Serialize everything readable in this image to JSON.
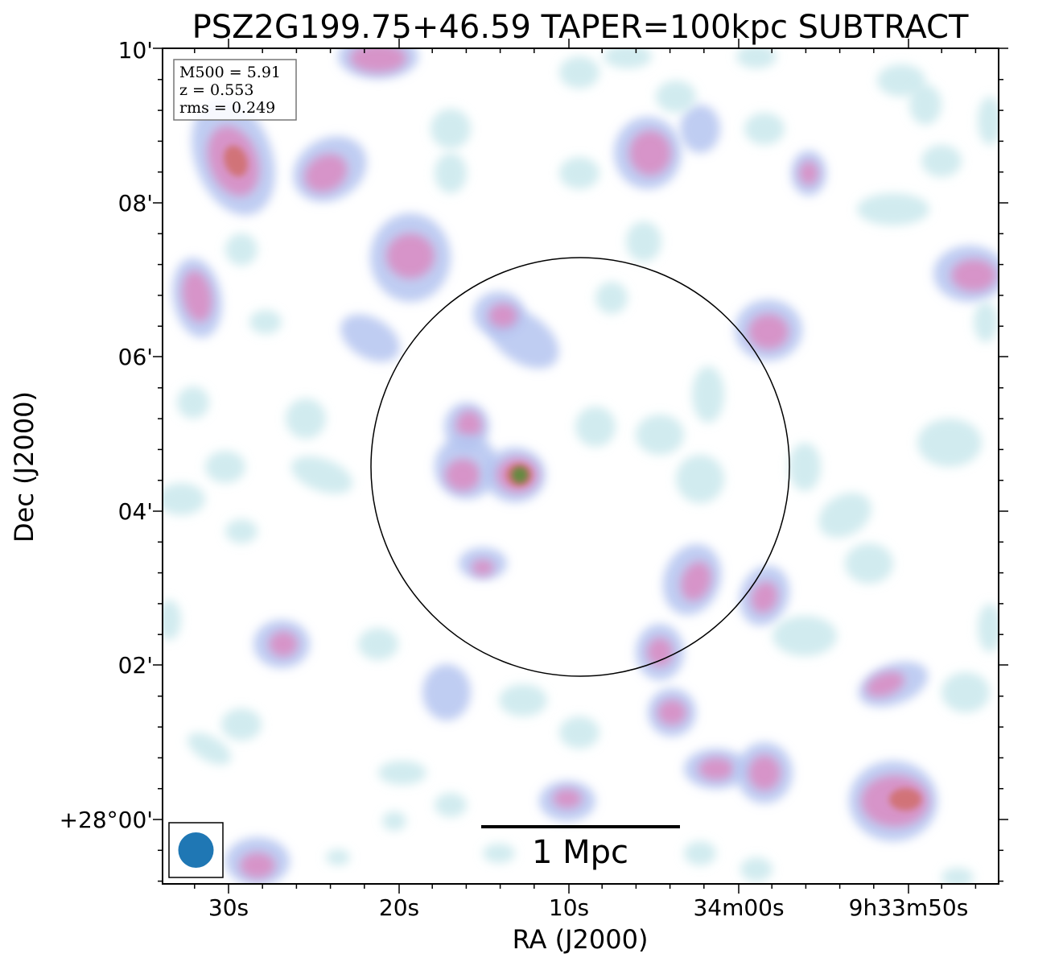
{
  "chart_data": {
    "type": "heatmap",
    "title": "PSZ2G199.75+46.59 TAPER=100kpc SUBTRACT",
    "xlabel": "RA (J2000)",
    "ylabel": "Dec (J2000)",
    "x_ticks": [
      "30s",
      "20s",
      "10s",
      "34m00s",
      "9h33m50s"
    ],
    "y_ticks": [
      "+28°00'",
      "02'",
      "04'",
      "06'",
      "08'",
      "10'"
    ],
    "info": {
      "m500": "M500 = 5.91",
      "z": "z = 0.553",
      "rms": "rms = 0.249"
    },
    "scale_bar_label": "1 Mpc",
    "colors": {
      "low": "#c2e4ea",
      "mid": "#b4c4f0",
      "high": "#d98ec4",
      "peak": "#d07070",
      "core": "#5a8c3a",
      "beam": "#1f77b4"
    },
    "grid": false
  }
}
